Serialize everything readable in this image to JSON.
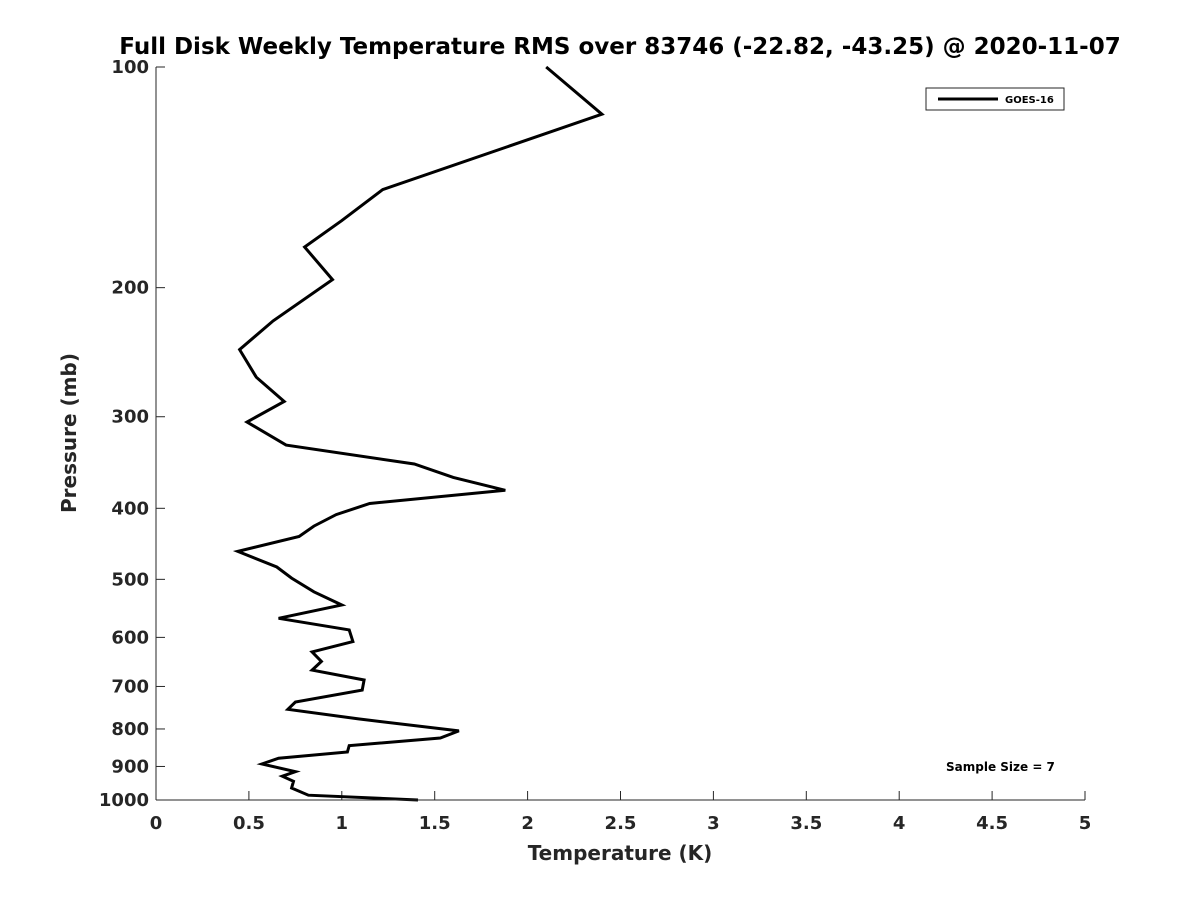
{
  "chart_data": {
    "type": "line",
    "title": "Full Disk Weekly Temperature RMS over 83746 (-22.82, -43.25) @ 2020-11-07",
    "xlabel": "Temperature (K)",
    "ylabel": "Pressure (mb)",
    "xlim": [
      0,
      5
    ],
    "ylim": [
      100,
      1000
    ],
    "y_scale": "log",
    "y_reversed": true,
    "x_ticks": [
      0,
      0.5,
      1,
      1.5,
      2,
      2.5,
      3,
      3.5,
      4,
      4.5,
      5
    ],
    "x_tick_labels": [
      "0",
      "0.5",
      "1",
      "1.5",
      "2",
      "2.5",
      "3",
      "3.5",
      "4",
      "4.5",
      "5"
    ],
    "y_ticks": [
      100,
      200,
      300,
      400,
      500,
      600,
      700,
      800,
      900,
      1000
    ],
    "y_tick_labels": [
      "100",
      "200",
      "300",
      "400",
      "500",
      "600",
      "700",
      "800",
      "900",
      "1000"
    ],
    "grid": false,
    "legend_position": "top-right",
    "annotation": "Sample Size = 7",
    "series": [
      {
        "name": "GOES-16",
        "color": "#000000",
        "points": [
          [
            2.1,
            100
          ],
          [
            2.4,
            116
          ],
          [
            1.22,
            147
          ],
          [
            1.0,
            162
          ],
          [
            0.8,
            176
          ],
          [
            0.95,
            195
          ],
          [
            0.63,
            222
          ],
          [
            0.45,
            243
          ],
          [
            0.54,
            265
          ],
          [
            0.69,
            286
          ],
          [
            0.49,
            305
          ],
          [
            0.7,
            328
          ],
          [
            1.39,
            348
          ],
          [
            1.6,
            363
          ],
          [
            1.88,
            378
          ],
          [
            1.15,
            394
          ],
          [
            0.97,
            408
          ],
          [
            0.85,
            423
          ],
          [
            0.77,
            437
          ],
          [
            0.44,
            458
          ],
          [
            0.65,
            481
          ],
          [
            0.73,
            498
          ],
          [
            0.85,
            520
          ],
          [
            1.0,
            542
          ],
          [
            0.66,
            565
          ],
          [
            1.04,
            586
          ],
          [
            1.06,
            608
          ],
          [
            0.84,
            628
          ],
          [
            0.89,
            647
          ],
          [
            0.84,
            665
          ],
          [
            1.12,
            686
          ],
          [
            1.11,
            708
          ],
          [
            0.75,
            735
          ],
          [
            0.71,
            752
          ],
          [
            1.09,
            775
          ],
          [
            1.63,
            805
          ],
          [
            1.53,
            823
          ],
          [
            1.04,
            843
          ],
          [
            1.03,
            860
          ],
          [
            0.66,
            877
          ],
          [
            0.57,
            893
          ],
          [
            0.75,
            915
          ],
          [
            0.68,
            928
          ],
          [
            0.74,
            943
          ],
          [
            0.73,
            963
          ],
          [
            0.82,
            985
          ],
          [
            1.41,
            1000
          ]
        ]
      }
    ]
  }
}
